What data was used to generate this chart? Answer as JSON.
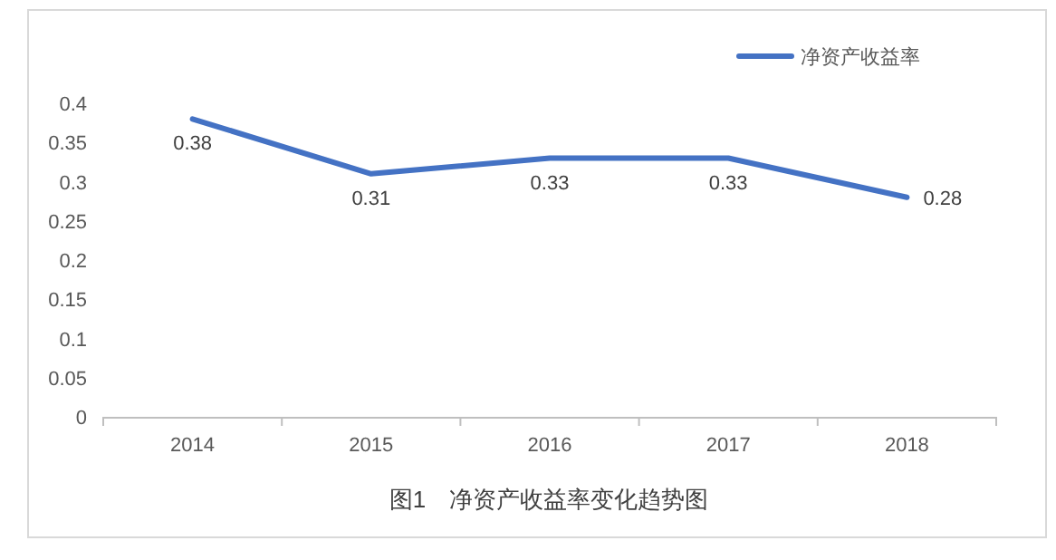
{
  "chart_data": {
    "type": "line",
    "title": "图1　净资产收益率变化趋势图",
    "categories": [
      "2014",
      "2015",
      "2016",
      "2017",
      "2018"
    ],
    "series": [
      {
        "name": "净资产收益率",
        "color": "#4472c4",
        "values": [
          0.38,
          0.31,
          0.33,
          0.33,
          0.28
        ]
      }
    ],
    "ylim": [
      0,
      0.4
    ],
    "yticks": [
      0,
      0.05,
      0.1,
      0.15,
      0.2,
      0.25,
      0.3,
      0.35,
      0.4
    ],
    "data_labels": true,
    "legend": "top right",
    "grid": false,
    "marker": "none",
    "line_style": "solid"
  }
}
